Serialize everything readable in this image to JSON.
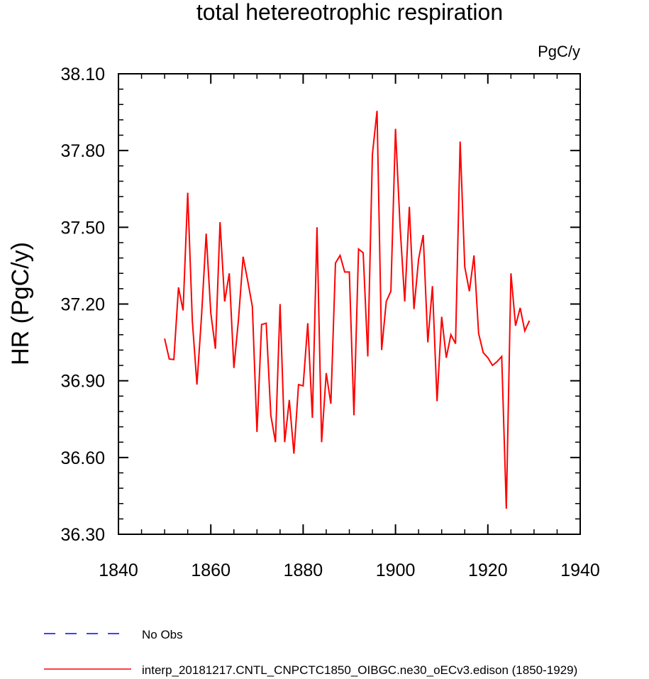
{
  "chart_data": {
    "type": "line",
    "title": "total hetereotrophic respiration",
    "units_label": "PgC/y",
    "xlabel": "",
    "ylabel": "HR  (PgC/y)",
    "xlim": [
      1840,
      1940
    ],
    "ylim": [
      36.3,
      38.1
    ],
    "x_ticks": [
      1840,
      1860,
      1880,
      1900,
      1920,
      1940
    ],
    "x_tick_labels": [
      "1840",
      "1860",
      "1880",
      "1900",
      "1920",
      "1940"
    ],
    "y_ticks": [
      36.3,
      36.6,
      36.9,
      37.2,
      37.5,
      37.8,
      38.1
    ],
    "y_tick_labels": [
      "36.30",
      "36.60",
      "36.90",
      "37.20",
      "37.50",
      "37.80",
      "38.10"
    ],
    "grid": false,
    "series": [
      {
        "name": "interp_20181217.CNTL_CNPCTC1850_OIBGC.ne30_oECv3.edison (1850-1929)",
        "color": "#ff0000",
        "style": "solid",
        "x": [
          1850,
          1851,
          1852,
          1853,
          1854,
          1855,
          1856,
          1857,
          1858,
          1859,
          1860,
          1861,
          1862,
          1863,
          1864,
          1865,
          1866,
          1867,
          1868,
          1869,
          1870,
          1871,
          1872,
          1873,
          1874,
          1875,
          1876,
          1877,
          1878,
          1879,
          1880,
          1881,
          1882,
          1883,
          1884,
          1885,
          1886,
          1887,
          1888,
          1889,
          1890,
          1891,
          1892,
          1893,
          1894,
          1895,
          1896,
          1897,
          1898,
          1899,
          1900,
          1901,
          1902,
          1903,
          1904,
          1905,
          1906,
          1907,
          1908,
          1909,
          1910,
          1911,
          1912,
          1913,
          1914,
          1915,
          1916,
          1917,
          1918,
          1919,
          1920,
          1921,
          1922,
          1923,
          1924,
          1925,
          1926,
          1927,
          1928,
          1929
        ],
        "values": [
          37.065,
          36.985,
          36.983,
          37.265,
          37.175,
          37.635,
          37.135,
          36.885,
          37.155,
          37.475,
          37.165,
          37.025,
          37.52,
          37.21,
          37.32,
          36.95,
          37.14,
          37.385,
          37.29,
          37.19,
          36.7,
          37.12,
          37.125,
          36.765,
          36.66,
          37.2,
          36.66,
          36.825,
          36.615,
          36.885,
          36.88,
          37.125,
          36.755,
          37.5,
          36.66,
          36.93,
          36.81,
          37.36,
          37.39,
          37.325,
          37.325,
          36.765,
          37.415,
          37.4,
          36.995,
          37.785,
          37.955,
          37.02,
          37.21,
          37.25,
          37.885,
          37.5,
          37.21,
          37.58,
          37.18,
          37.375,
          37.47,
          37.05,
          37.27,
          36.82,
          37.15,
          36.99,
          37.08,
          37.045,
          37.835,
          37.345,
          37.25,
          37.39,
          37.085,
          37.01,
          36.99,
          36.96,
          36.975,
          36.995,
          36.4,
          37.32,
          37.115,
          37.185,
          37.095,
          37.135
        ]
      },
      {
        "name": "No Obs",
        "color": "#0000ff",
        "style": "dashed",
        "x": [],
        "values": []
      }
    ],
    "legend_placement": "bottom"
  }
}
